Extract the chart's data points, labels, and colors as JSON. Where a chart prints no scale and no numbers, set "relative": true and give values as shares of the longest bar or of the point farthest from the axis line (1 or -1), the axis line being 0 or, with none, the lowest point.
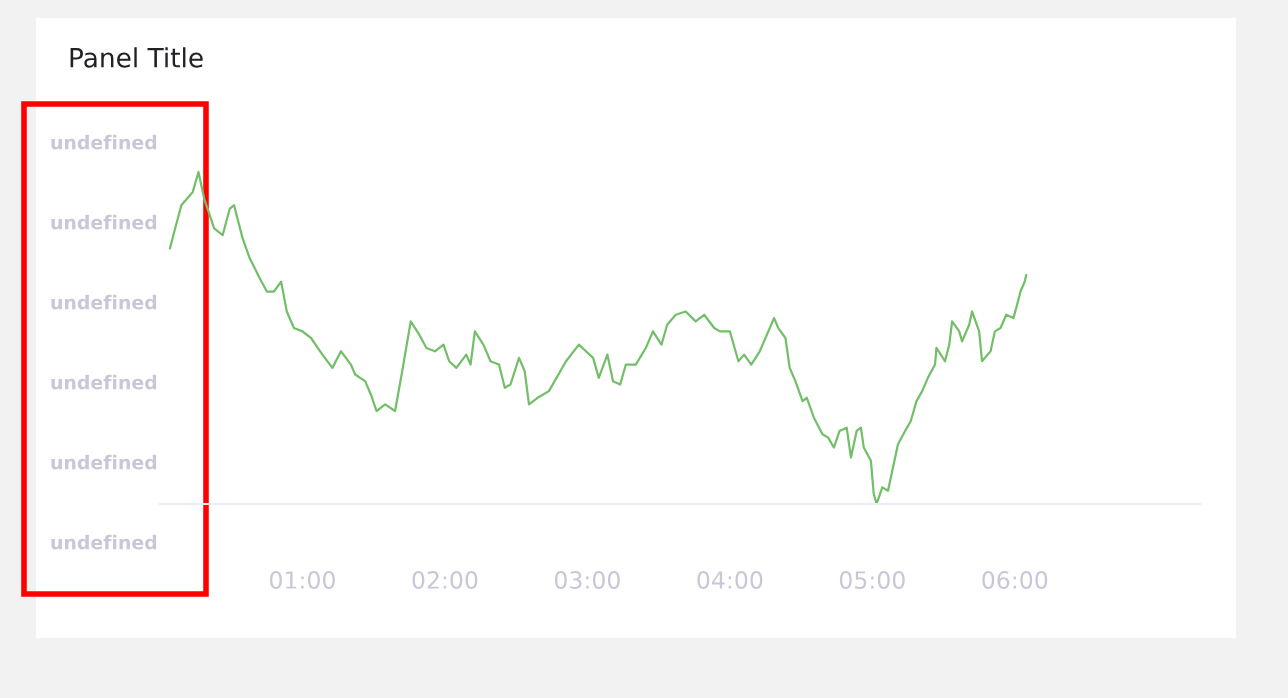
{
  "chart_data": {
    "type": "line",
    "title": "Panel Title",
    "relative": true,
    "annotations": [
      "undefined",
      "undefined",
      "undefined",
      "undefined",
      "undefined",
      "undefined"
    ],
    "xlim": [
      0,
      7.3
    ],
    "xticks": [
      {
        "value": 1,
        "label": "01:00"
      },
      {
        "value": 2,
        "label": "02:00"
      },
      {
        "value": 3,
        "label": "03:00"
      },
      {
        "value": 4,
        "label": "04:00"
      },
      {
        "value": 5,
        "label": "05:00"
      },
      {
        "value": 6,
        "label": "06:00"
      }
    ],
    "grid": false,
    "legend": false,
    "series": [
      {
        "color": "#73bf69",
        "x": [
          0.07,
          0.1,
          0.15,
          0.23,
          0.27,
          0.31,
          0.38,
          0.44,
          0.49,
          0.52,
          0.58,
          0.63,
          0.7,
          0.75,
          0.8,
          0.85,
          0.89,
          0.94,
          1.0,
          1.06,
          1.14,
          1.21,
          1.27,
          1.34,
          1.37,
          1.44,
          1.48,
          1.52,
          1.58,
          1.65,
          1.7,
          1.76,
          1.82,
          1.87,
          1.93,
          1.99,
          2.03,
          2.08,
          2.15,
          2.18,
          2.21,
          2.27,
          2.32,
          2.38,
          2.42,
          2.46,
          2.52,
          2.56,
          2.59,
          2.65,
          2.73,
          2.85,
          2.94,
          2.99,
          3.04,
          3.08,
          3.14,
          3.18,
          3.23,
          3.27,
          3.34,
          3.41,
          3.46,
          3.52,
          3.56,
          3.62,
          3.69,
          3.76,
          3.82,
          3.89,
          3.93,
          4.0,
          4.06,
          4.1,
          4.15,
          4.21,
          4.27,
          4.31,
          4.34,
          4.39,
          4.42,
          4.46,
          4.51,
          4.54,
          4.59,
          4.65,
          4.69,
          4.73,
          4.77,
          4.82,
          4.85,
          4.89,
          4.92,
          4.94,
          4.99,
          5.01,
          5.03,
          5.07,
          5.11,
          5.15,
          5.18,
          5.23,
          5.27,
          5.31,
          5.35,
          5.39,
          5.44,
          5.45,
          5.51,
          5.54,
          5.56,
          5.61,
          5.63,
          5.68,
          5.7,
          5.75,
          5.77,
          5.83,
          5.86,
          5.9,
          5.94,
          5.99,
          6.01,
          6.04,
          6.07,
          6.08
        ],
        "values": [
          0.77,
          0.82,
          0.9,
          0.94,
          1.0,
          0.92,
          0.83,
          0.81,
          0.89,
          0.9,
          0.8,
          0.74,
          0.68,
          0.64,
          0.64,
          0.67,
          0.58,
          0.53,
          0.52,
          0.5,
          0.45,
          0.41,
          0.46,
          0.42,
          0.39,
          0.37,
          0.33,
          0.28,
          0.3,
          0.28,
          0.4,
          0.55,
          0.51,
          0.47,
          0.46,
          0.48,
          0.43,
          0.41,
          0.45,
          0.42,
          0.52,
          0.48,
          0.43,
          0.42,
          0.35,
          0.36,
          0.44,
          0.4,
          0.3,
          0.32,
          0.34,
          0.43,
          0.48,
          0.46,
          0.44,
          0.38,
          0.45,
          0.37,
          0.36,
          0.42,
          0.42,
          0.47,
          0.52,
          0.48,
          0.54,
          0.57,
          0.58,
          0.55,
          0.57,
          0.53,
          0.52,
          0.52,
          0.43,
          0.45,
          0.42,
          0.46,
          0.52,
          0.56,
          0.53,
          0.5,
          0.41,
          0.37,
          0.31,
          0.32,
          0.26,
          0.21,
          0.2,
          0.17,
          0.22,
          0.23,
          0.14,
          0.22,
          0.23,
          0.17,
          0.13,
          0.03,
          0.0,
          0.05,
          0.04,
          0.12,
          0.18,
          0.22,
          0.25,
          0.31,
          0.34,
          0.38,
          0.42,
          0.47,
          0.43,
          0.48,
          0.55,
          0.52,
          0.49,
          0.54,
          0.58,
          0.52,
          0.43,
          0.46,
          0.52,
          0.53,
          0.57,
          0.56,
          0.59,
          0.64,
          0.67,
          0.69
        ]
      }
    ]
  }
}
